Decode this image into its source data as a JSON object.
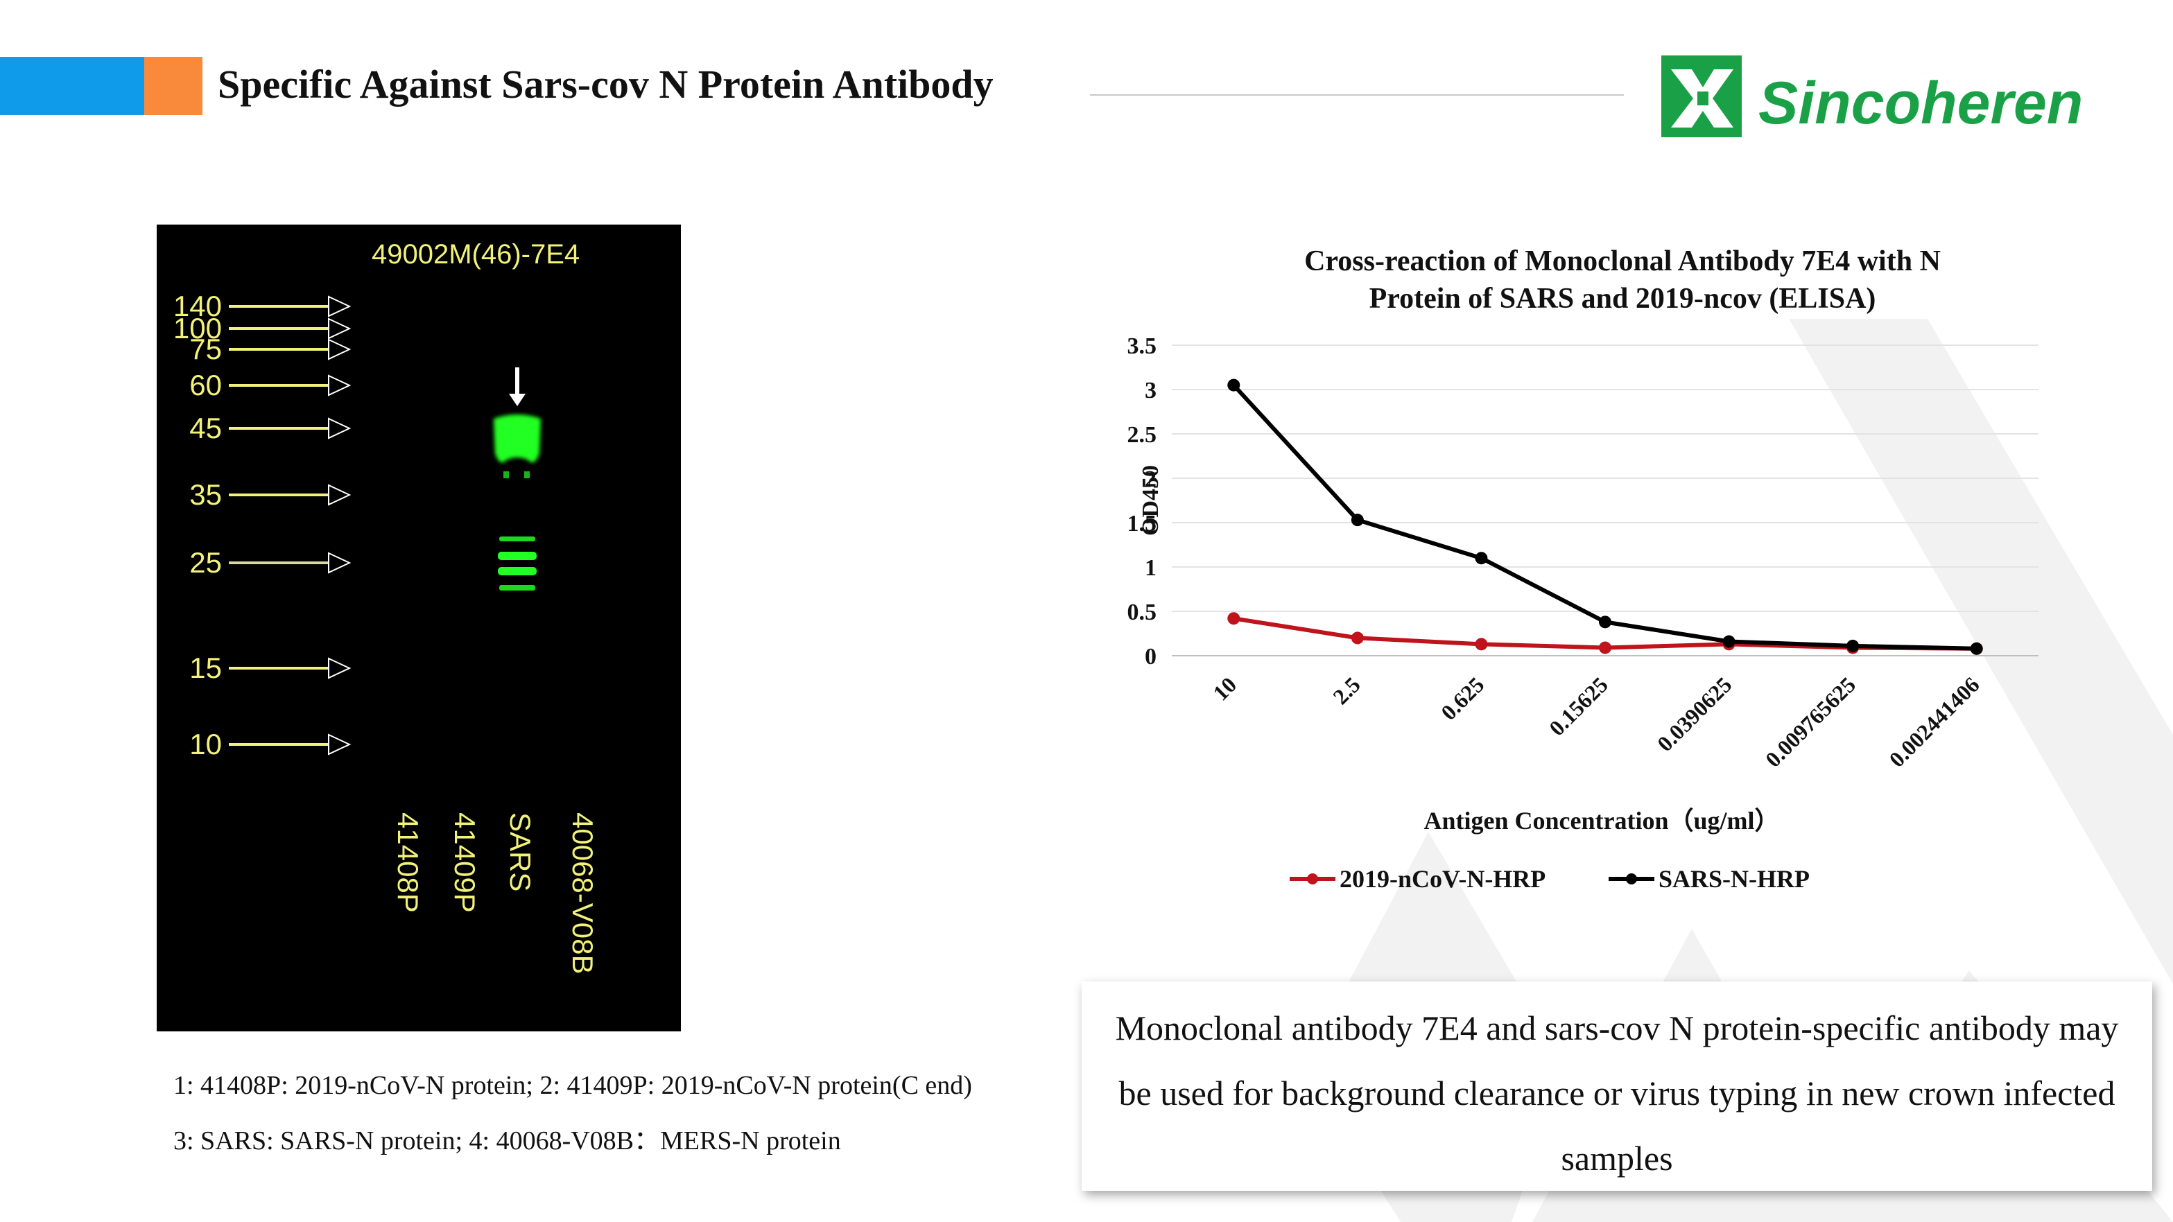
{
  "slide": {
    "title": "Specific Against Sars-cov N Protein Antibody",
    "logo_text": "Sincoheren",
    "brand_colors": {
      "blue": "#0f9bea",
      "orange": "#f98a3c",
      "logo_green": "#1aa147"
    }
  },
  "blot": {
    "title": "49002M(46)-7E4",
    "markers": [
      "140",
      "100",
      "75",
      "60",
      "45",
      "35",
      "25",
      "15",
      "10"
    ],
    "lanes": [
      "41408P",
      "41409P",
      "SARS",
      "40068-V08B"
    ],
    "band_color": "#22ff22",
    "label_color": "#f2f27a"
  },
  "captions": {
    "line1": "1: 41408P: 2019-nCoV-N protein; 2: 41409P: 2019-nCoV-N protein(C end)",
    "line2": "3: SARS: SARS-N protein; 4: 40068-V08B：MERS-N protein"
  },
  "chart_data": {
    "type": "line",
    "title_lines": [
      "Cross-reaction of Monoclonal Antibody 7E4 with N",
      "Protein of SARS and 2019-ncov (ELISA)"
    ],
    "xlabel": "Antigen Concentration（ug/ml）",
    "ylabel": "OD450",
    "categories": [
      "10",
      "2.5",
      "0.625",
      "0.15625",
      "0.0390625",
      "0.009765625",
      "0.002441406"
    ],
    "y_ticks": [
      "3.5",
      "3",
      "2.5",
      "2",
      "1.5",
      "1",
      "0.5",
      "0"
    ],
    "ylim": [
      0,
      3.5
    ],
    "grid": true,
    "legend_position": "bottom",
    "series": [
      {
        "name": "2019-nCoV-N-HRP",
        "color": "#c0141c",
        "values": [
          0.42,
          0.2,
          0.13,
          0.09,
          0.13,
          0.09,
          0.08
        ]
      },
      {
        "name": "SARS-N-HRP",
        "color": "#000000",
        "values": [
          3.05,
          1.53,
          1.1,
          0.38,
          0.16,
          0.11,
          0.08
        ]
      }
    ]
  },
  "note": {
    "text": "Monoclonal antibody 7E4 and sars-cov N protein-specific antibody may be used for background clearance or virus typing in new crown infected samples"
  }
}
